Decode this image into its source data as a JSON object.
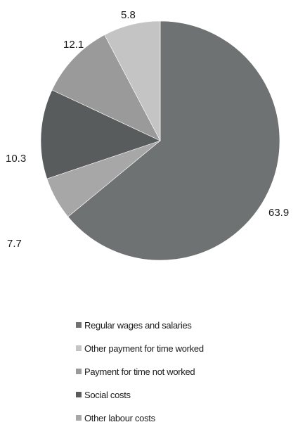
{
  "chart_data": {
    "type": "pie",
    "categories": [
      "Regular wages and salaries",
      "Other payment for time worked",
      "Payment for time not worked",
      "Social costs",
      "Other labour costs"
    ],
    "values": [
      63.9,
      7.7,
      10.3,
      12.1,
      5.8
    ],
    "data_labels": [
      "63.9",
      "7.7",
      "10.3",
      "12.1",
      "5.8"
    ],
    "colors": [
      "#6f7272",
      "#c4c4c4",
      "#9a9a9a",
      "#595c5c",
      "#a7a7a7"
    ],
    "title": "",
    "legend_position": "bottom",
    "start_angle": "top",
    "direction": "clockwise"
  }
}
